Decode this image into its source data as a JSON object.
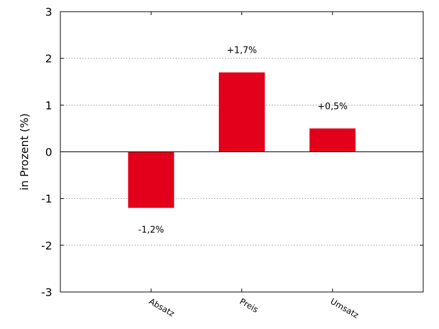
{
  "chart_data": {
    "type": "bar",
    "categories": [
      "Absatz",
      "Preis",
      "Umsatz"
    ],
    "values": [
      -1.2,
      1.7,
      0.5
    ],
    "data_labels": [
      "-1,2%",
      "+1,7%",
      "+0,5%"
    ],
    "title": "",
    "xlabel": "",
    "ylabel": "in Prozent (%)",
    "ylim": [
      -3,
      3
    ],
    "yticks": [
      -3,
      -2,
      -1,
      0,
      1,
      2,
      3
    ],
    "ytick_labels": [
      "-3",
      "-2",
      "-1",
      "0",
      "1",
      "2",
      "3"
    ],
    "grid": "horizontal dotted",
    "bar_color": "#e2001a",
    "zero_line": true
  }
}
